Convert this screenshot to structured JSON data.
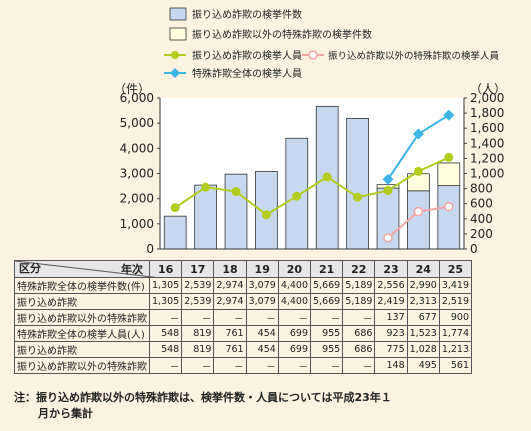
{
  "chart_data": {
    "type": "bar+line",
    "categories": [
      "16",
      "17",
      "18",
      "19",
      "20",
      "21",
      "22",
      "23",
      "24",
      "25"
    ],
    "left_axis": {
      "unit": "（件）",
      "ylim": [
        0,
        6000
      ],
      "ticks": [
        "0",
        "1,000",
        "2,000",
        "3,000",
        "4,000",
        "5,000",
        "6,000"
      ]
    },
    "right_axis": {
      "unit": "（人）",
      "ylim": [
        0,
        2000
      ],
      "ticks": [
        "0",
        "200",
        "400",
        "600",
        "800",
        "1,000",
        "1,200",
        "1,400",
        "1,600",
        "1,800",
        "2,000"
      ]
    },
    "stacked_bars": [
      {
        "name": "振り込め詐欺の検挙件数",
        "color": "#c6d9f1",
        "values": [
          1305,
          2539,
          2974,
          3079,
          4400,
          5669,
          5189,
          2419,
          2313,
          2519
        ]
      },
      {
        "name": "振り込め詐欺以外の特殊詐欺の検挙件数",
        "color": "#ffffdd",
        "values": [
          0,
          0,
          0,
          0,
          0,
          0,
          0,
          137,
          677,
          900
        ]
      }
    ],
    "lines": [
      {
        "name": "振り込め詐欺の検挙人員",
        "color": "#b2cc1f",
        "values": [
          548,
          819,
          761,
          454,
          699,
          955,
          686,
          775,
          1028,
          1213
        ]
      },
      {
        "name": "振り込め詐欺以外の特殊詐欺の検挙人員",
        "color": "#f2a4a4",
        "values": [
          null,
          null,
          null,
          null,
          null,
          null,
          null,
          148,
          495,
          561
        ]
      },
      {
        "name": "特殊詐欺全体の検挙人員",
        "color": "#3cb4e8",
        "values": [
          null,
          null,
          null,
          null,
          null,
          null,
          null,
          923,
          1523,
          1774
        ]
      }
    ]
  },
  "table": {
    "corner_left": "区分",
    "corner_right": "年次",
    "years": [
      "16",
      "17",
      "18",
      "19",
      "20",
      "21",
      "22",
      "23",
      "24",
      "25"
    ],
    "rows": [
      {
        "label": "特殊詐欺全体の検挙件数(件)",
        "indent": false,
        "values": [
          "1,305",
          "2,539",
          "2,974",
          "3,079",
          "4,400",
          "5,669",
          "5,189",
          "2,556",
          "2,990",
          "3,419"
        ]
      },
      {
        "label": "振り込め詐欺",
        "indent": true,
        "values": [
          "1,305",
          "2,539",
          "2,974",
          "3,079",
          "4,400",
          "5,669",
          "5,189",
          "2,419",
          "2,313",
          "2,519"
        ]
      },
      {
        "label": "振り込め詐欺以外の特殊詐欺",
        "indent": true,
        "values": [
          "－",
          "－",
          "－",
          "－",
          "－",
          "－",
          "－",
          "137",
          "677",
          "900"
        ]
      },
      {
        "label": "特殊詐欺全体の検挙人員(人)",
        "indent": false,
        "values": [
          "548",
          "819",
          "761",
          "454",
          "699",
          "955",
          "686",
          "923",
          "1,523",
          "1,774"
        ]
      },
      {
        "label": "振り込め詐欺",
        "indent": true,
        "values": [
          "548",
          "819",
          "761",
          "454",
          "699",
          "955",
          "686",
          "775",
          "1,028",
          "1,213"
        ]
      },
      {
        "label": "振り込め詐欺以外の特殊詐欺",
        "indent": true,
        "values": [
          "－",
          "－",
          "－",
          "－",
          "－",
          "－",
          "－",
          "148",
          "495",
          "561"
        ]
      }
    ]
  },
  "note": {
    "line1": "注：振り込め詐欺以外の特殊詐欺は、検挙件数・人員については平成23年１",
    "line2": "月から集計"
  }
}
